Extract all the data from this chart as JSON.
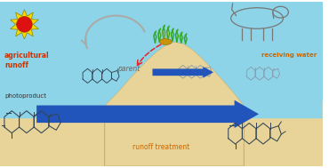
{
  "bg_color": "#ffffff",
  "water_color": "#8dd4e8",
  "sand_color": "#e8d498",
  "arrow_blue": "#2255bb",
  "sun_yellow": "#f8d800",
  "sun_red": "#dd1111",
  "text_agr_runoff": "agricultural\nrunoff",
  "text_agr_color": "#cc3300",
  "text_parent": "parent",
  "text_parent_color": "#666666",
  "text_photoproduct": "photoproduct",
  "text_photoproduct_color": "#333333",
  "text_receiving": "receiving water",
  "text_receiving_color": "#cc6600",
  "text_runoff": "runoff treatment",
  "text_runoff_color": "#cc6600",
  "grass_color": "#33aa22",
  "mound_color": "#e8d498",
  "molecule_color": "#334455",
  "molecule_light": "#8899aa",
  "cow_color": "#777777",
  "gray_arrow": "#aaaaaa",
  "red_dashed": "#ee2222"
}
